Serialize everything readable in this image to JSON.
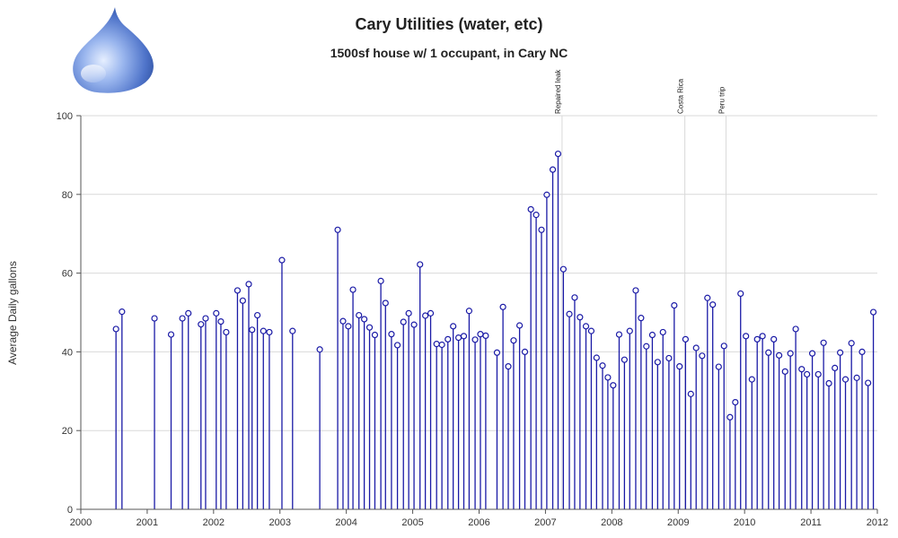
{
  "chart_data": {
    "type": "needle-scatter",
    "title": "Cary Utilities (water, etc)",
    "subtitle": "1500sf house w/ 1 occupant, in Cary NC",
    "ylabel": "Average Daily gallons",
    "xlabel": "",
    "xlim": [
      2000,
      2012
    ],
    "ylim": [
      0,
      100
    ],
    "x_ticks": [
      2000,
      2001,
      2002,
      2003,
      2004,
      2005,
      2006,
      2007,
      2008,
      2009,
      2010,
      2011,
      2012
    ],
    "y_ticks": [
      0,
      20,
      40,
      60,
      80,
      100
    ],
    "grid": true,
    "colors": {
      "needle": "#1a1aa6",
      "marker": "#1a1aa6",
      "grid": "#d9d9d9"
    },
    "annotations": [
      {
        "x": 2007.25,
        "text": "Repaired leak"
      },
      {
        "x": 2009.1,
        "text": "Costa Rica"
      },
      {
        "x": 2009.72,
        "text": "Peru trip"
      }
    ],
    "points": [
      [
        2000.53,
        45.8
      ],
      [
        2000.62,
        50.2
      ],
      [
        2001.11,
        48.5
      ],
      [
        2001.36,
        44.4
      ],
      [
        2001.53,
        48.5
      ],
      [
        2001.62,
        49.8
      ],
      [
        2001.81,
        47.0
      ],
      [
        2001.88,
        48.5
      ],
      [
        2002.04,
        49.8
      ],
      [
        2002.11,
        47.7
      ],
      [
        2002.19,
        45.0
      ],
      [
        2002.36,
        55.6
      ],
      [
        2002.44,
        53.0
      ],
      [
        2002.53,
        57.2
      ],
      [
        2002.58,
        45.6
      ],
      [
        2002.66,
        49.3
      ],
      [
        2002.75,
        45.3
      ],
      [
        2002.84,
        45.0
      ],
      [
        2003.03,
        63.3
      ],
      [
        2003.19,
        45.3
      ],
      [
        2003.6,
        40.6
      ],
      [
        2003.87,
        71.0
      ],
      [
        2003.95,
        47.8
      ],
      [
        2004.03,
        46.5
      ],
      [
        2004.1,
        55.8
      ],
      [
        2004.19,
        49.3
      ],
      [
        2004.27,
        48.3
      ],
      [
        2004.35,
        46.2
      ],
      [
        2004.43,
        44.3
      ],
      [
        2004.52,
        58.0
      ],
      [
        2004.59,
        52.4
      ],
      [
        2004.68,
        44.5
      ],
      [
        2004.77,
        41.7
      ],
      [
        2004.86,
        47.6
      ],
      [
        2004.94,
        49.8
      ],
      [
        2005.02,
        46.9
      ],
      [
        2005.11,
        62.2
      ],
      [
        2005.19,
        49.2
      ],
      [
        2005.27,
        49.8
      ],
      [
        2005.36,
        42.0
      ],
      [
        2005.44,
        41.8
      ],
      [
        2005.53,
        43.2
      ],
      [
        2005.61,
        46.5
      ],
      [
        2005.69,
        43.6
      ],
      [
        2005.77,
        44.0
      ],
      [
        2005.85,
        50.4
      ],
      [
        2005.94,
        43.1
      ],
      [
        2006.02,
        44.5
      ],
      [
        2006.1,
        44.1
      ],
      [
        2006.27,
        39.8
      ],
      [
        2006.36,
        51.4
      ],
      [
        2006.44,
        36.3
      ],
      [
        2006.52,
        42.9
      ],
      [
        2006.61,
        46.7
      ],
      [
        2006.69,
        40.0
      ],
      [
        2006.78,
        76.2
      ],
      [
        2006.86,
        74.8
      ],
      [
        2006.94,
        71.0
      ],
      [
        2007.02,
        79.9
      ],
      [
        2007.11,
        86.3
      ],
      [
        2007.19,
        90.3
      ],
      [
        2007.27,
        61.0
      ],
      [
        2007.36,
        49.6
      ],
      [
        2007.44,
        53.8
      ],
      [
        2007.52,
        48.8
      ],
      [
        2007.61,
        46.5
      ],
      [
        2007.69,
        45.3
      ],
      [
        2007.77,
        38.5
      ],
      [
        2007.86,
        36.5
      ],
      [
        2007.94,
        33.5
      ],
      [
        2008.02,
        31.5
      ],
      [
        2008.11,
        44.4
      ],
      [
        2008.19,
        38.0
      ],
      [
        2008.27,
        45.3
      ],
      [
        2008.36,
        55.6
      ],
      [
        2008.44,
        48.6
      ],
      [
        2008.52,
        41.4
      ],
      [
        2008.61,
        44.3
      ],
      [
        2008.69,
        37.4
      ],
      [
        2008.77,
        45.0
      ],
      [
        2008.86,
        38.4
      ],
      [
        2008.94,
        51.8
      ],
      [
        2009.02,
        36.3
      ],
      [
        2009.11,
        43.2
      ],
      [
        2009.19,
        29.3
      ],
      [
        2009.27,
        41.0
      ],
      [
        2009.36,
        39.0
      ],
      [
        2009.44,
        53.7
      ],
      [
        2009.52,
        52.0
      ],
      [
        2009.61,
        36.2
      ],
      [
        2009.69,
        41.5
      ],
      [
        2009.78,
        23.4
      ],
      [
        2009.86,
        27.2
      ],
      [
        2009.94,
        54.8
      ],
      [
        2010.02,
        44.0
      ],
      [
        2010.11,
        33.0
      ],
      [
        2010.19,
        43.2
      ],
      [
        2010.27,
        44.0
      ],
      [
        2010.36,
        39.8
      ],
      [
        2010.44,
        43.2
      ],
      [
        2010.52,
        39.1
      ],
      [
        2010.61,
        35.0
      ],
      [
        2010.69,
        39.6
      ],
      [
        2010.77,
        45.8
      ],
      [
        2010.86,
        35.6
      ],
      [
        2010.94,
        34.3
      ],
      [
        2011.02,
        39.6
      ],
      [
        2011.11,
        34.3
      ],
      [
        2011.19,
        42.3
      ],
      [
        2011.27,
        32.0
      ],
      [
        2011.36,
        35.9
      ],
      [
        2011.44,
        39.8
      ],
      [
        2011.52,
        33.0
      ],
      [
        2011.61,
        42.2
      ],
      [
        2011.69,
        33.4
      ],
      [
        2011.77,
        40.0
      ],
      [
        2011.86,
        32.1
      ],
      [
        2011.94,
        50.1
      ]
    ]
  }
}
